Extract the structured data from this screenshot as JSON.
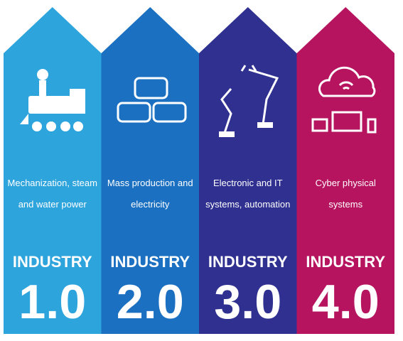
{
  "columns": [
    {
      "description": [
        "Mechanization, steam",
        "and water power"
      ],
      "label": "INDUSTRY",
      "version": "1.0",
      "color": "#2ea4dd"
    },
    {
      "description": [
        "Mass production and",
        "electricity"
      ],
      "label": "INDUSTRY",
      "version": "2.0",
      "color": "#1b70c1"
    },
    {
      "description": [
        "Electronic and IT",
        "systems, automation"
      ],
      "label": "INDUSTRY",
      "version": "3.0",
      "color": "#2f3090"
    },
    {
      "description": [
        "Cyber physical",
        "systems"
      ],
      "label": "INDUSTRY",
      "version": "4.0",
      "color": "#b6145f"
    }
  ]
}
